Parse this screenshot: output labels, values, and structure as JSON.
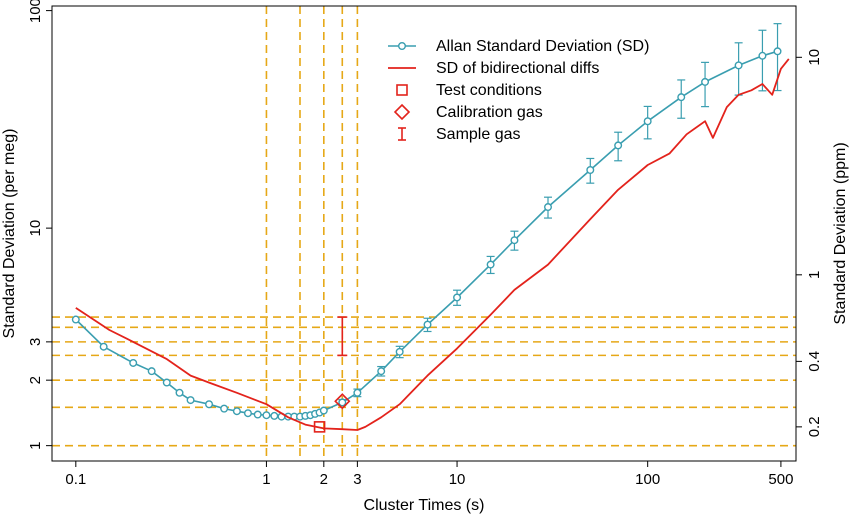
{
  "chart_data": {
    "type": "line",
    "xlabel": "Cluster Times (s)",
    "ylabel": "Standard Deviation (per meg)",
    "y2label": "Standard Deviation (ppm)",
    "x_scale": "log",
    "y_scale": "log",
    "xlim": [
      0.075,
      600
    ],
    "ylim": [
      0.85,
      105
    ],
    "x_ticks": [
      {
        "value": 0.1,
        "label": "0.1"
      },
      {
        "value": 1,
        "label": "1"
      },
      {
        "value": 2,
        "label": "2"
      },
      {
        "value": 3,
        "label": "3"
      },
      {
        "value": 10,
        "label": "10"
      },
      {
        "value": 100,
        "label": "100"
      },
      {
        "value": 500,
        "label": "500"
      }
    ],
    "y_ticks": [
      {
        "value": 1,
        "label": "1"
      },
      {
        "value": 2,
        "label": "2"
      },
      {
        "value": 3,
        "label": "3"
      },
      {
        "value": 10,
        "label": "10"
      },
      {
        "value": 100,
        "label": "100"
      }
    ],
    "y2_ticks": [
      {
        "value": 1.22,
        "label": "0.2"
      },
      {
        "value": 2.44,
        "label": "0.4"
      },
      {
        "value": 6.1,
        "label": "1"
      },
      {
        "value": 61,
        "label": "10"
      }
    ],
    "vertical_dashed_lines": [
      1,
      1.5,
      2,
      2.5,
      3
    ],
    "horizontal_dashed_lines": [
      1,
      1.5,
      2,
      2.6,
      3,
      3.5,
      3.9
    ],
    "reference_color": "#e6a817",
    "series": [
      {
        "name": "Allan Standard Deviation (SD)",
        "color": "#3a9eb0",
        "marker": "circle",
        "x": [
          0.1,
          0.14,
          0.2,
          0.25,
          0.3,
          0.35,
          0.4,
          0.5,
          0.6,
          0.7,
          0.8,
          0.9,
          1.0,
          1.1,
          1.2,
          1.3,
          1.4,
          1.5,
          1.6,
          1.7,
          1.8,
          1.9,
          2.0,
          2.5,
          3.0,
          4.0,
          5.0,
          7.0,
          10,
          15,
          20,
          30,
          50,
          70,
          100,
          150,
          200,
          300,
          400,
          480
        ],
        "y": [
          3.8,
          2.85,
          2.4,
          2.2,
          1.95,
          1.75,
          1.62,
          1.55,
          1.48,
          1.44,
          1.41,
          1.39,
          1.38,
          1.37,
          1.36,
          1.36,
          1.36,
          1.36,
          1.37,
          1.38,
          1.4,
          1.42,
          1.45,
          1.58,
          1.75,
          2.2,
          2.7,
          3.6,
          4.8,
          6.8,
          8.8,
          12.5,
          18.5,
          24,
          31,
          40,
          47,
          56,
          62,
          65
        ]
      },
      {
        "name": "SD of bidirectional diffs",
        "color": "#e3231c",
        "marker": "none",
        "x": [
          0.1,
          0.15,
          0.2,
          0.3,
          0.4,
          0.5,
          0.7,
          1.0,
          1.3,
          1.6,
          2.0,
          2.5,
          3.0,
          3.3,
          4.0,
          5.0,
          7.0,
          10,
          15,
          20,
          30,
          50,
          70,
          100,
          130,
          160,
          200,
          220,
          260,
          300,
          350,
          400,
          450,
          500,
          550
        ],
        "y": [
          4.3,
          3.4,
          3.0,
          2.5,
          2.1,
          1.95,
          1.75,
          1.55,
          1.35,
          1.25,
          1.2,
          1.19,
          1.18,
          1.22,
          1.35,
          1.55,
          2.1,
          2.8,
          4.0,
          5.2,
          6.8,
          11,
          15,
          19.5,
          22,
          27,
          31,
          26,
          36,
          41,
          43,
          46,
          41,
          54,
          60
        ]
      }
    ],
    "error_bars": {
      "x": [
        2.5,
        3.0,
        4.0,
        5.0,
        7.0,
        10,
        15,
        20,
        30,
        50,
        70,
        100,
        150,
        200,
        300,
        400,
        480
      ],
      "center": [
        1.58,
        1.75,
        2.2,
        2.7,
        3.6,
        4.8,
        6.8,
        8.8,
        12.5,
        18.5,
        24,
        31,
        40,
        47,
        56,
        62,
        65
      ],
      "rel_half": [
        0.03,
        0.04,
        0.05,
        0.06,
        0.07,
        0.08,
        0.09,
        0.1,
        0.11,
        0.13,
        0.15,
        0.17,
        0.2,
        0.23,
        0.27,
        0.31,
        0.34
      ]
    },
    "points": [
      {
        "name": "Test conditions",
        "x": 1.9,
        "y": 1.22,
        "marker": "square",
        "color": "#e3231c"
      },
      {
        "name": "Calibration gas",
        "x": 2.5,
        "y": 1.6,
        "marker": "diamond",
        "color": "#e3231c"
      },
      {
        "name": "Sample gas",
        "x": 2.5,
        "y_low": 2.6,
        "y_high": 3.9,
        "marker": "errorbar",
        "color": "#e3231c"
      }
    ],
    "legend": {
      "position": "top-right",
      "entries": [
        {
          "label": "Allan Standard Deviation (SD)",
          "symbol": "line-circle",
          "color": "#3a9eb0"
        },
        {
          "label": "SD of bidirectional diffs",
          "symbol": "line",
          "color": "#e3231c"
        },
        {
          "label": "Test conditions",
          "symbol": "square",
          "color": "#e3231c"
        },
        {
          "label": "Calibration gas",
          "symbol": "diamond",
          "color": "#e3231c"
        },
        {
          "label": "Sample gas",
          "symbol": "errorbar",
          "color": "#e3231c"
        }
      ]
    }
  }
}
